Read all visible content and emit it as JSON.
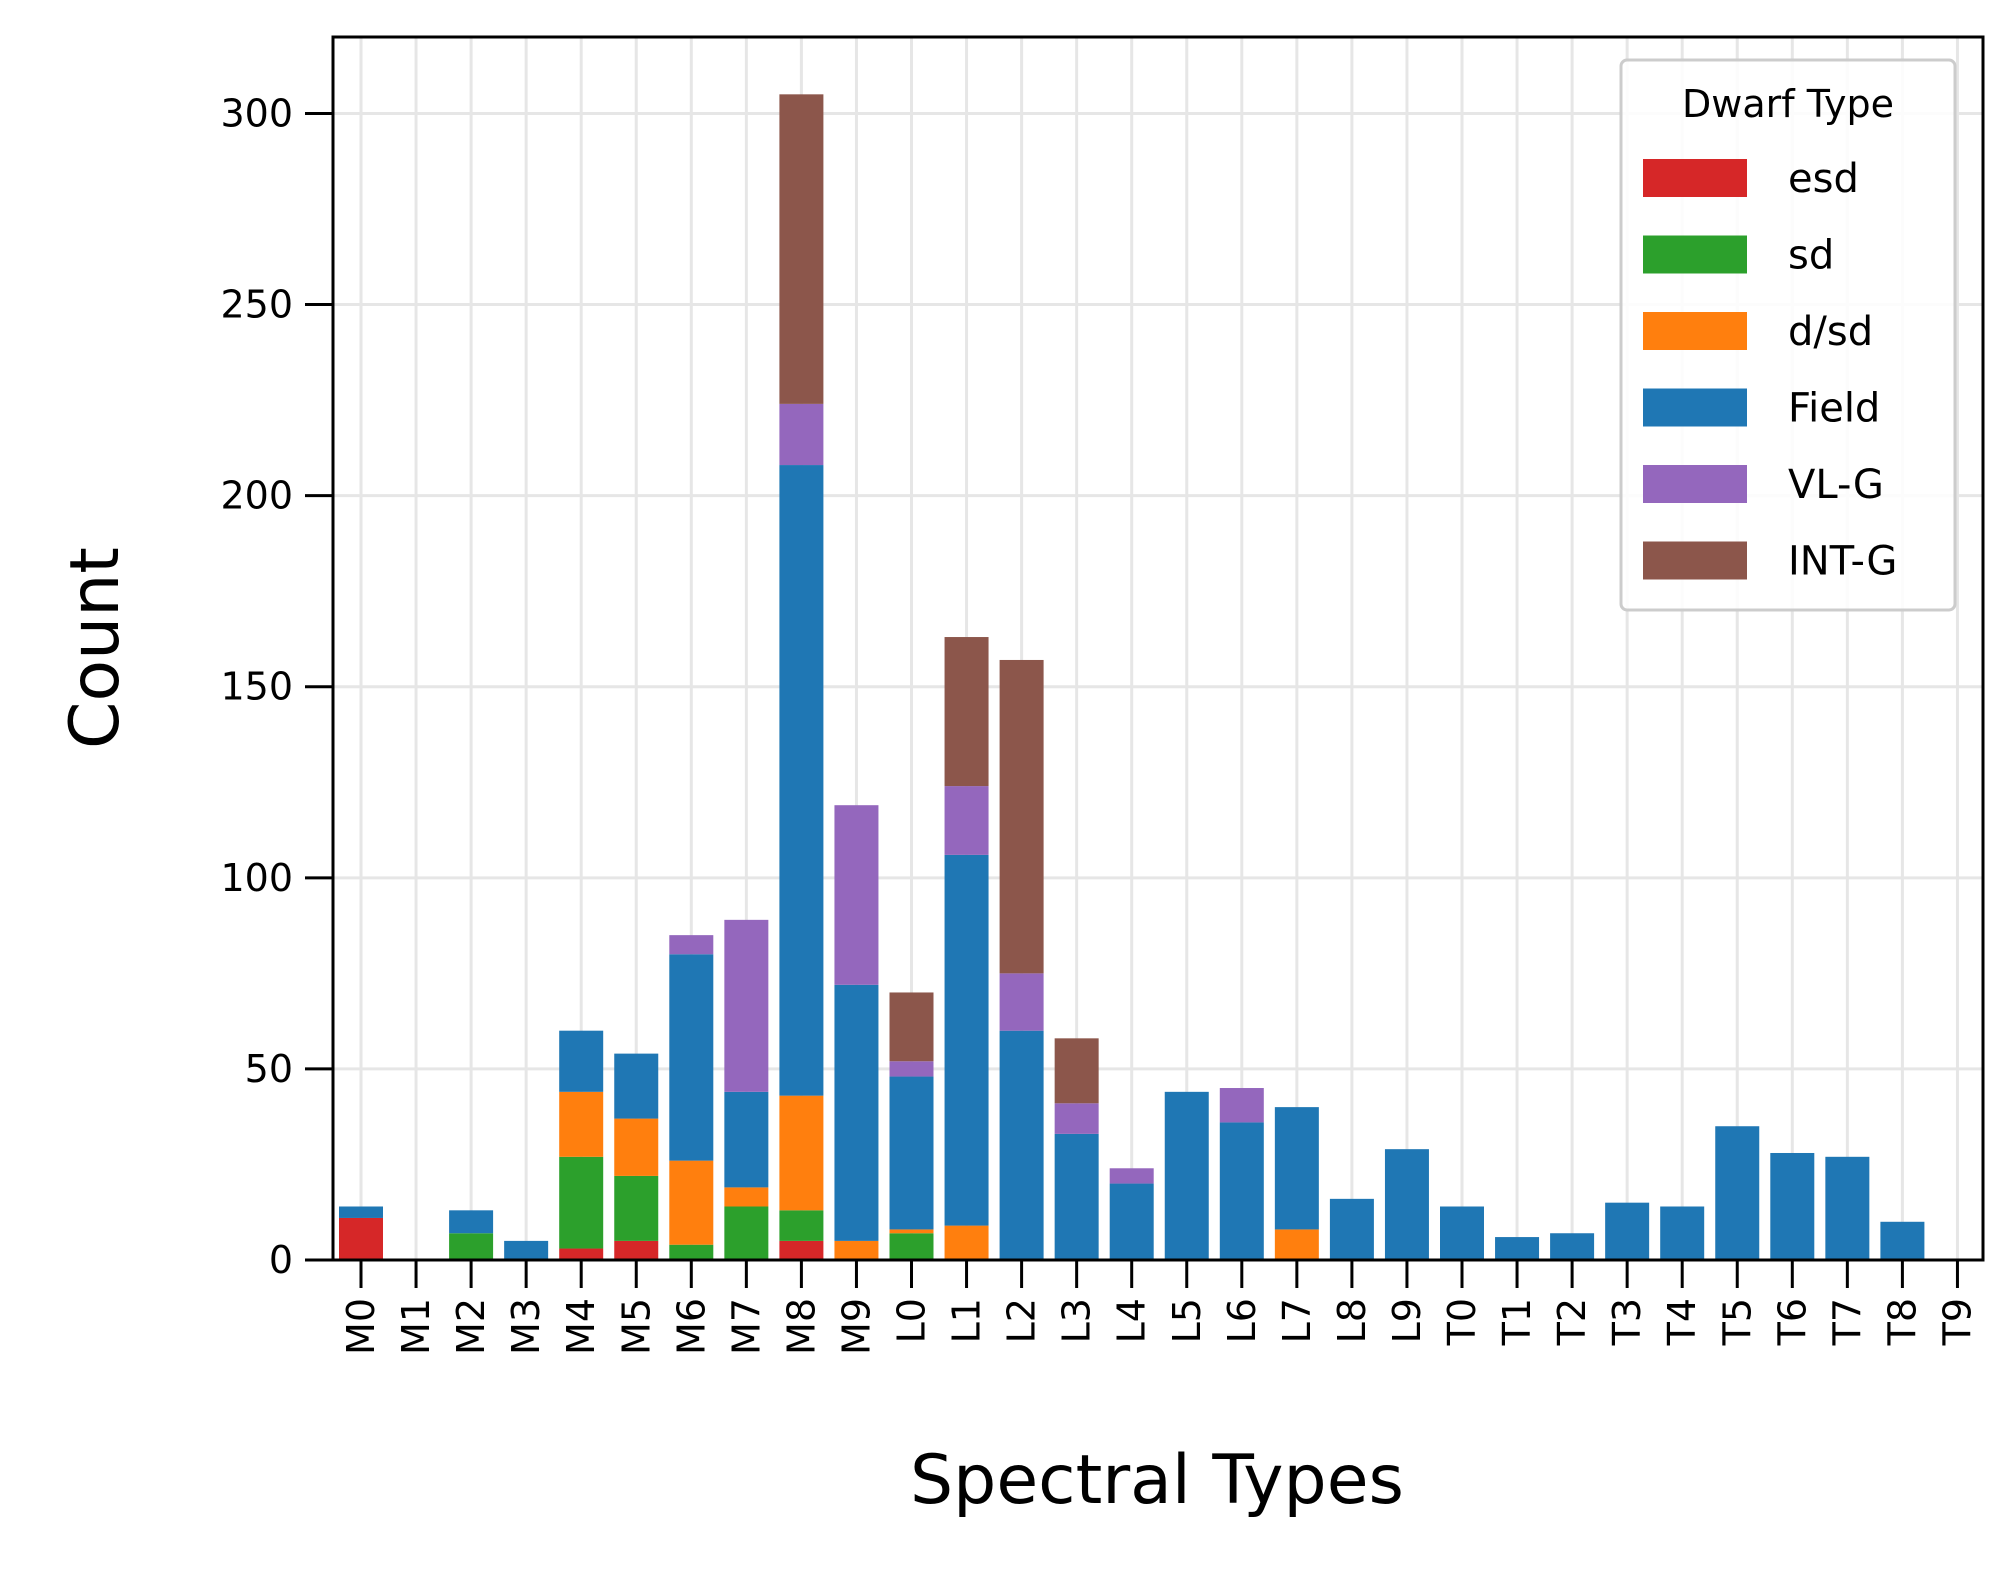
{
  "chart_data": {
    "type": "bar",
    "stacked": true,
    "title": "",
    "xlabel": "Spectral Types",
    "ylabel": "Count",
    "ylim": [
      0,
      320
    ],
    "yticks": [
      0,
      50,
      100,
      150,
      200,
      250,
      300
    ],
    "grid": true,
    "categories": [
      "M0",
      "M1",
      "M2",
      "M3",
      "M4",
      "M5",
      "M6",
      "M7",
      "M8",
      "M9",
      "L0",
      "L1",
      "L2",
      "L3",
      "L4",
      "L5",
      "L6",
      "L7",
      "L8",
      "L9",
      "T0",
      "T1",
      "T2",
      "T3",
      "T4",
      "T5",
      "T6",
      "T7",
      "T8",
      "T9"
    ],
    "series": [
      {
        "name": "esd",
        "color": "#d62728",
        "values": [
          11,
          0,
          0,
          0,
          3,
          5,
          0,
          0,
          5,
          0,
          0,
          0,
          0,
          0,
          0,
          0,
          0,
          0,
          0,
          0,
          0,
          0,
          0,
          0,
          0,
          0,
          0,
          0,
          0,
          0
        ]
      },
      {
        "name": "sd",
        "color": "#2ca02c",
        "values": [
          0,
          0,
          7,
          0,
          24,
          17,
          4,
          14,
          8,
          0,
          7,
          0,
          0,
          0,
          0,
          0,
          0,
          0,
          0,
          0,
          0,
          0,
          0,
          0,
          0,
          0,
          0,
          0,
          0,
          0
        ]
      },
      {
        "name": "d/sd",
        "color": "#ff7f0e",
        "values": [
          0,
          0,
          0,
          0,
          17,
          15,
          22,
          5,
          30,
          5,
          1,
          9,
          0,
          0,
          0,
          0,
          0,
          8,
          0,
          0,
          0,
          0,
          0,
          0,
          0,
          0,
          0,
          0,
          0,
          0
        ]
      },
      {
        "name": "Field",
        "color": "#1f77b4",
        "values": [
          3,
          0,
          6,
          5,
          16,
          17,
          54,
          25,
          165,
          67,
          40,
          97,
          60,
          33,
          20,
          44,
          36,
          32,
          16,
          29,
          14,
          6,
          7,
          15,
          14,
          35,
          28,
          27,
          10,
          0
        ]
      },
      {
        "name": "VL-G",
        "color": "#9467bd",
        "values": [
          0,
          0,
          0,
          0,
          0,
          0,
          5,
          45,
          16,
          47,
          4,
          18,
          15,
          8,
          4,
          0,
          9,
          0,
          0,
          0,
          0,
          0,
          0,
          0,
          0,
          0,
          0,
          0,
          0,
          0
        ]
      },
      {
        "name": "INT-G",
        "color": "#8c564b",
        "values": [
          0,
          0,
          0,
          0,
          0,
          0,
          0,
          0,
          81,
          0,
          18,
          39,
          82,
          17,
          0,
          0,
          0,
          0,
          0,
          0,
          0,
          0,
          0,
          0,
          0,
          0,
          0,
          0,
          0,
          0
        ]
      }
    ],
    "legend": {
      "title": "Dwarf Type",
      "placement": "top-right"
    }
  }
}
